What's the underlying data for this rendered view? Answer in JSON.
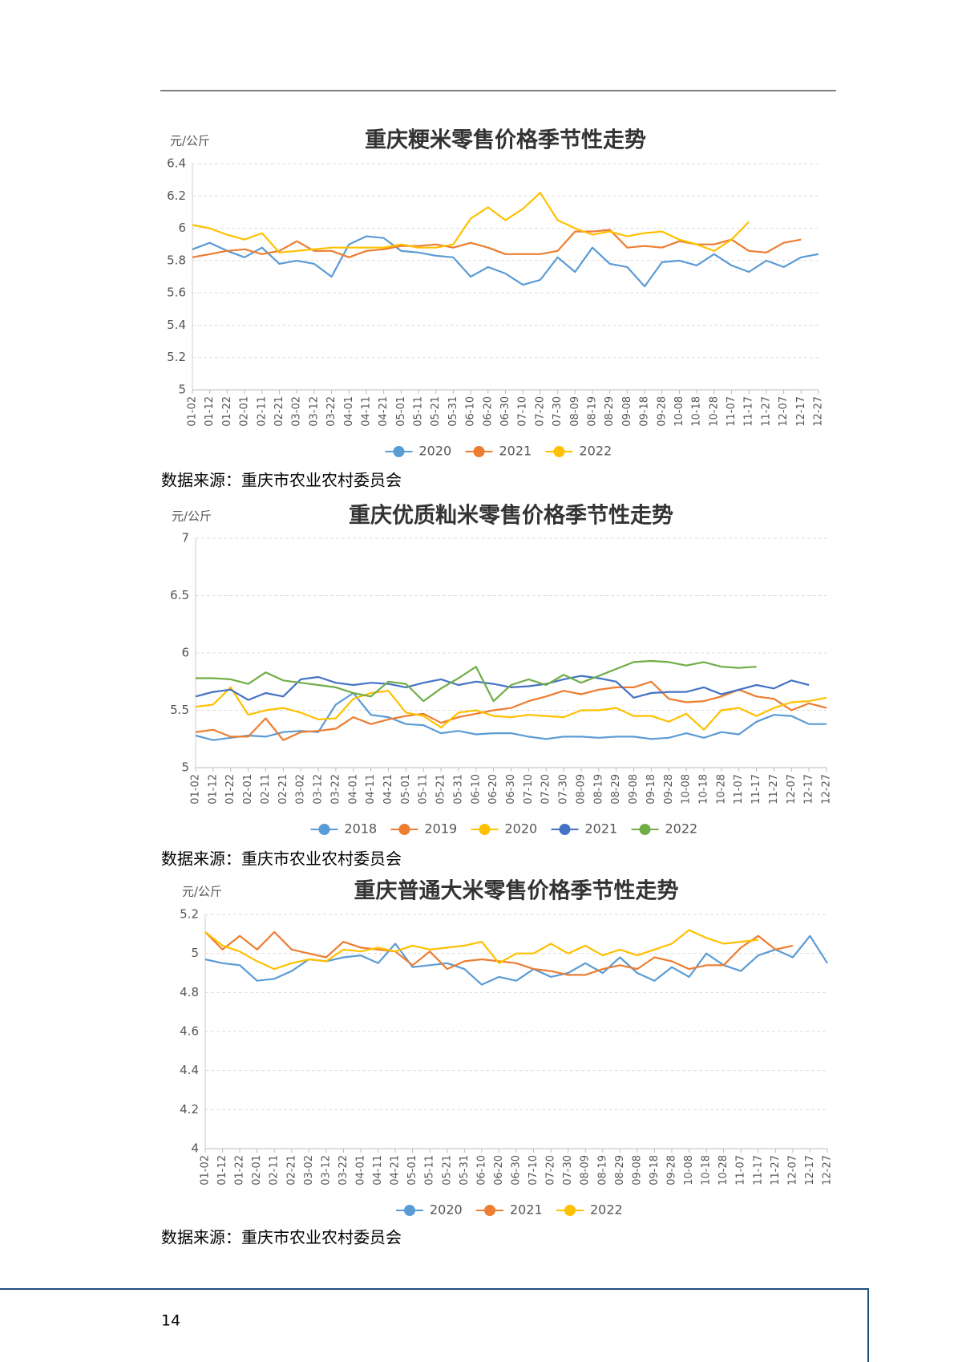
{
  "chart_data": [
    {
      "type": "line",
      "title": "重庆粳米零售价格季节性走势",
      "unit": "元/公斤",
      "categories": [
        "01-02",
        "01-12",
        "01-22",
        "02-01",
        "02-11",
        "02-21",
        "03-02",
        "03-12",
        "03-22",
        "04-01",
        "04-11",
        "04-21",
        "05-01",
        "05-11",
        "05-21",
        "05-31",
        "06-10",
        "06-20",
        "06-30",
        "07-10",
        "07-20",
        "07-30",
        "08-09",
        "08-19",
        "08-29",
        "09-08",
        "09-18",
        "09-28",
        "10-08",
        "10-18",
        "10-28",
        "11-07",
        "11-17",
        "11-27",
        "12-07",
        "12-17",
        "12-27"
      ],
      "ylim": [
        5,
        6.4
      ],
      "yticks": [
        5,
        5.2,
        5.4,
        5.6,
        5.8,
        6,
        6.2,
        6.4
      ],
      "grid": true,
      "legend": "bottom",
      "series": [
        {
          "name": "2020",
          "color": "#5b9bd5",
          "values": [
            5.87,
            5.91,
            5.86,
            5.82,
            5.88,
            5.78,
            5.8,
            5.78,
            5.7,
            5.9,
            5.95,
            5.94,
            5.86,
            5.85,
            5.83,
            5.82,
            5.7,
            5.76,
            5.72,
            5.65,
            5.68,
            5.82,
            5.73,
            5.88,
            5.78,
            5.76,
            5.64,
            5.79,
            5.8,
            5.77,
            5.84,
            5.77,
            5.73,
            5.8,
            5.76,
            5.82,
            5.84
          ]
        },
        {
          "name": "2021",
          "color": "#ed7d31",
          "values": [
            5.82,
            5.84,
            5.86,
            5.87,
            5.84,
            5.86,
            5.92,
            5.86,
            5.86,
            5.82,
            5.86,
            5.87,
            5.89,
            5.89,
            5.9,
            5.88,
            5.91,
            5.88,
            5.84,
            5.84,
            5.84,
            5.86,
            5.98,
            5.98,
            5.99,
            5.88,
            5.89,
            5.88,
            5.92,
            5.9,
            5.9,
            5.93,
            5.86,
            5.85,
            5.91,
            5.93,
            null
          ]
        },
        {
          "name": "2022",
          "color": "#ffc000",
          "values": [
            6.02,
            6.0,
            5.96,
            5.93,
            5.97,
            5.85,
            5.86,
            5.87,
            5.88,
            5.88,
            5.88,
            5.88,
            5.9,
            5.88,
            5.88,
            5.9,
            6.06,
            6.13,
            6.05,
            6.12,
            6.22,
            6.05,
            6.0,
            5.96,
            5.98,
            5.95,
            5.97,
            5.98,
            5.93,
            5.9,
            5.86,
            5.93,
            6.04,
            null,
            null,
            null,
            null
          ]
        }
      ]
    },
    {
      "type": "line",
      "title": "重庆优质籼米零售价格季节性走势",
      "unit": "元/公斤",
      "categories": [
        "01-02",
        "01-12",
        "01-22",
        "02-01",
        "02-11",
        "02-21",
        "03-02",
        "03-12",
        "03-22",
        "04-01",
        "04-11",
        "04-21",
        "05-01",
        "05-11",
        "05-21",
        "05-31",
        "06-10",
        "06-20",
        "06-30",
        "07-10",
        "07-20",
        "07-30",
        "08-09",
        "08-19",
        "08-29",
        "09-08",
        "09-18",
        "09-28",
        "10-08",
        "10-18",
        "10-28",
        "11-07",
        "11-17",
        "11-27",
        "12-07",
        "12-17",
        "12-27"
      ],
      "ylim": [
        5,
        7
      ],
      "yticks": [
        5,
        5.5,
        6,
        6.5,
        7
      ],
      "grid": true,
      "legend": "bottom",
      "series": [
        {
          "name": "2018",
          "color": "#5b9bd5",
          "values": [
            5.28,
            5.24,
            5.26,
            5.28,
            5.27,
            5.31,
            5.32,
            5.31,
            5.55,
            5.65,
            5.46,
            5.44,
            5.38,
            5.37,
            5.3,
            5.32,
            5.29,
            5.3,
            5.3,
            5.27,
            5.25,
            5.27,
            5.27,
            5.26,
            5.27,
            5.27,
            5.25,
            5.26,
            5.3,
            5.26,
            5.31,
            5.29,
            5.4,
            5.46,
            5.45,
            5.38,
            5.38
          ]
        },
        {
          "name": "2019",
          "color": "#ed7d31",
          "values": [
            5.31,
            5.33,
            5.27,
            5.27,
            5.43,
            5.24,
            5.31,
            5.32,
            5.34,
            5.44,
            5.38,
            5.42,
            5.45,
            5.47,
            5.39,
            5.44,
            5.47,
            5.5,
            5.52,
            5.58,
            5.62,
            5.67,
            5.64,
            5.68,
            5.7,
            5.7,
            5.75,
            5.6,
            5.57,
            5.58,
            5.62,
            5.68,
            5.62,
            5.6,
            5.5,
            5.56,
            5.52
          ]
        },
        {
          "name": "2020",
          "color": "#ffc000",
          "values": [
            5.53,
            5.55,
            5.7,
            5.46,
            5.5,
            5.52,
            5.48,
            5.42,
            5.43,
            5.6,
            5.65,
            5.67,
            5.48,
            5.45,
            5.35,
            5.48,
            5.5,
            5.45,
            5.44,
            5.46,
            5.45,
            5.44,
            5.5,
            5.5,
            5.52,
            5.45,
            5.45,
            5.4,
            5.47,
            5.33,
            5.5,
            5.52,
            5.45,
            5.52,
            5.57,
            5.58,
            5.61
          ]
        },
        {
          "name": "2021",
          "color": "#4472c4",
          "values": [
            5.62,
            5.66,
            5.68,
            5.59,
            5.65,
            5.62,
            5.77,
            5.79,
            5.74,
            5.72,
            5.74,
            5.73,
            5.7,
            5.74,
            5.77,
            5.72,
            5.75,
            5.73,
            5.7,
            5.71,
            5.73,
            5.77,
            5.8,
            5.78,
            5.75,
            5.61,
            5.65,
            5.66,
            5.66,
            5.7,
            5.64,
            5.68,
            5.72,
            5.69,
            5.76,
            5.72,
            null
          ]
        },
        {
          "name": "2022",
          "color": "#70ad47",
          "values": [
            5.78,
            5.78,
            5.77,
            5.73,
            5.83,
            5.76,
            5.74,
            5.72,
            5.7,
            5.65,
            5.62,
            5.75,
            5.73,
            5.58,
            5.69,
            5.78,
            5.88,
            5.58,
            5.72,
            5.77,
            5.72,
            5.81,
            5.74,
            5.8,
            5.86,
            5.92,
            5.93,
            5.92,
            5.89,
            5.92,
            5.88,
            5.87,
            5.88,
            null,
            null,
            null,
            null
          ]
        }
      ]
    },
    {
      "type": "line",
      "title": "重庆普通大米零售价格季节性走势",
      "unit": "元/公斤",
      "categories": [
        "01-02",
        "01-12",
        "01-22",
        "02-01",
        "02-11",
        "02-21",
        "03-02",
        "03-12",
        "03-22",
        "04-01",
        "04-11",
        "04-21",
        "05-01",
        "05-11",
        "05-21",
        "05-31",
        "06-10",
        "06-20",
        "06-30",
        "07-10",
        "07-20",
        "07-30",
        "08-09",
        "08-19",
        "08-29",
        "09-08",
        "09-18",
        "09-28",
        "10-08",
        "10-18",
        "10-28",
        "11-07",
        "11-17",
        "11-27",
        "12-07",
        "12-17",
        "12-27"
      ],
      "ylim": [
        4,
        5.2
      ],
      "yticks": [
        4,
        4.2,
        4.4,
        4.6,
        4.8,
        5,
        5.2
      ],
      "grid": true,
      "legend": "bottom",
      "series": [
        {
          "name": "2020",
          "color": "#5b9bd5",
          "values": [
            4.97,
            4.95,
            4.94,
            4.86,
            4.87,
            4.91,
            4.97,
            4.96,
            4.98,
            4.99,
            4.95,
            5.05,
            4.93,
            4.94,
            4.95,
            4.92,
            4.84,
            4.88,
            4.86,
            4.92,
            4.88,
            4.9,
            4.95,
            4.9,
            4.98,
            4.9,
            4.86,
            4.93,
            4.88,
            5.0,
            4.94,
            4.91,
            4.99,
            5.02,
            4.98,
            5.09,
            4.95
          ]
        },
        {
          "name": "2021",
          "color": "#ed7d31",
          "values": [
            5.11,
            5.02,
            5.09,
            5.02,
            5.11,
            5.02,
            5.0,
            4.98,
            5.06,
            5.03,
            5.02,
            5.01,
            4.94,
            5.01,
            4.92,
            4.96,
            4.97,
            4.96,
            4.95,
            4.92,
            4.91,
            4.89,
            4.89,
            4.92,
            4.94,
            4.92,
            4.98,
            4.96,
            4.92,
            4.94,
            4.94,
            5.03,
            5.09,
            5.02,
            5.04,
            null,
            null
          ]
        },
        {
          "name": "2022",
          "color": "#ffc000",
          "values": [
            5.11,
            5.04,
            5.01,
            4.96,
            4.92,
            4.95,
            4.97,
            4.96,
            5.02,
            5.01,
            5.03,
            5.01,
            5.04,
            5.02,
            5.03,
            5.04,
            5.06,
            4.95,
            5.0,
            5.0,
            5.05,
            5.0,
            5.04,
            4.99,
            5.02,
            4.99,
            5.02,
            5.05,
            5.12,
            5.08,
            5.05,
            5.06,
            5.07,
            null,
            null,
            null,
            null
          ]
        }
      ]
    }
  ],
  "sources": [
    "数据来源：重庆市农业农村委员会",
    "数据来源：重庆市农业农村委员会",
    "数据来源：重庆市农业农村委员会"
  ],
  "page_number": "14"
}
